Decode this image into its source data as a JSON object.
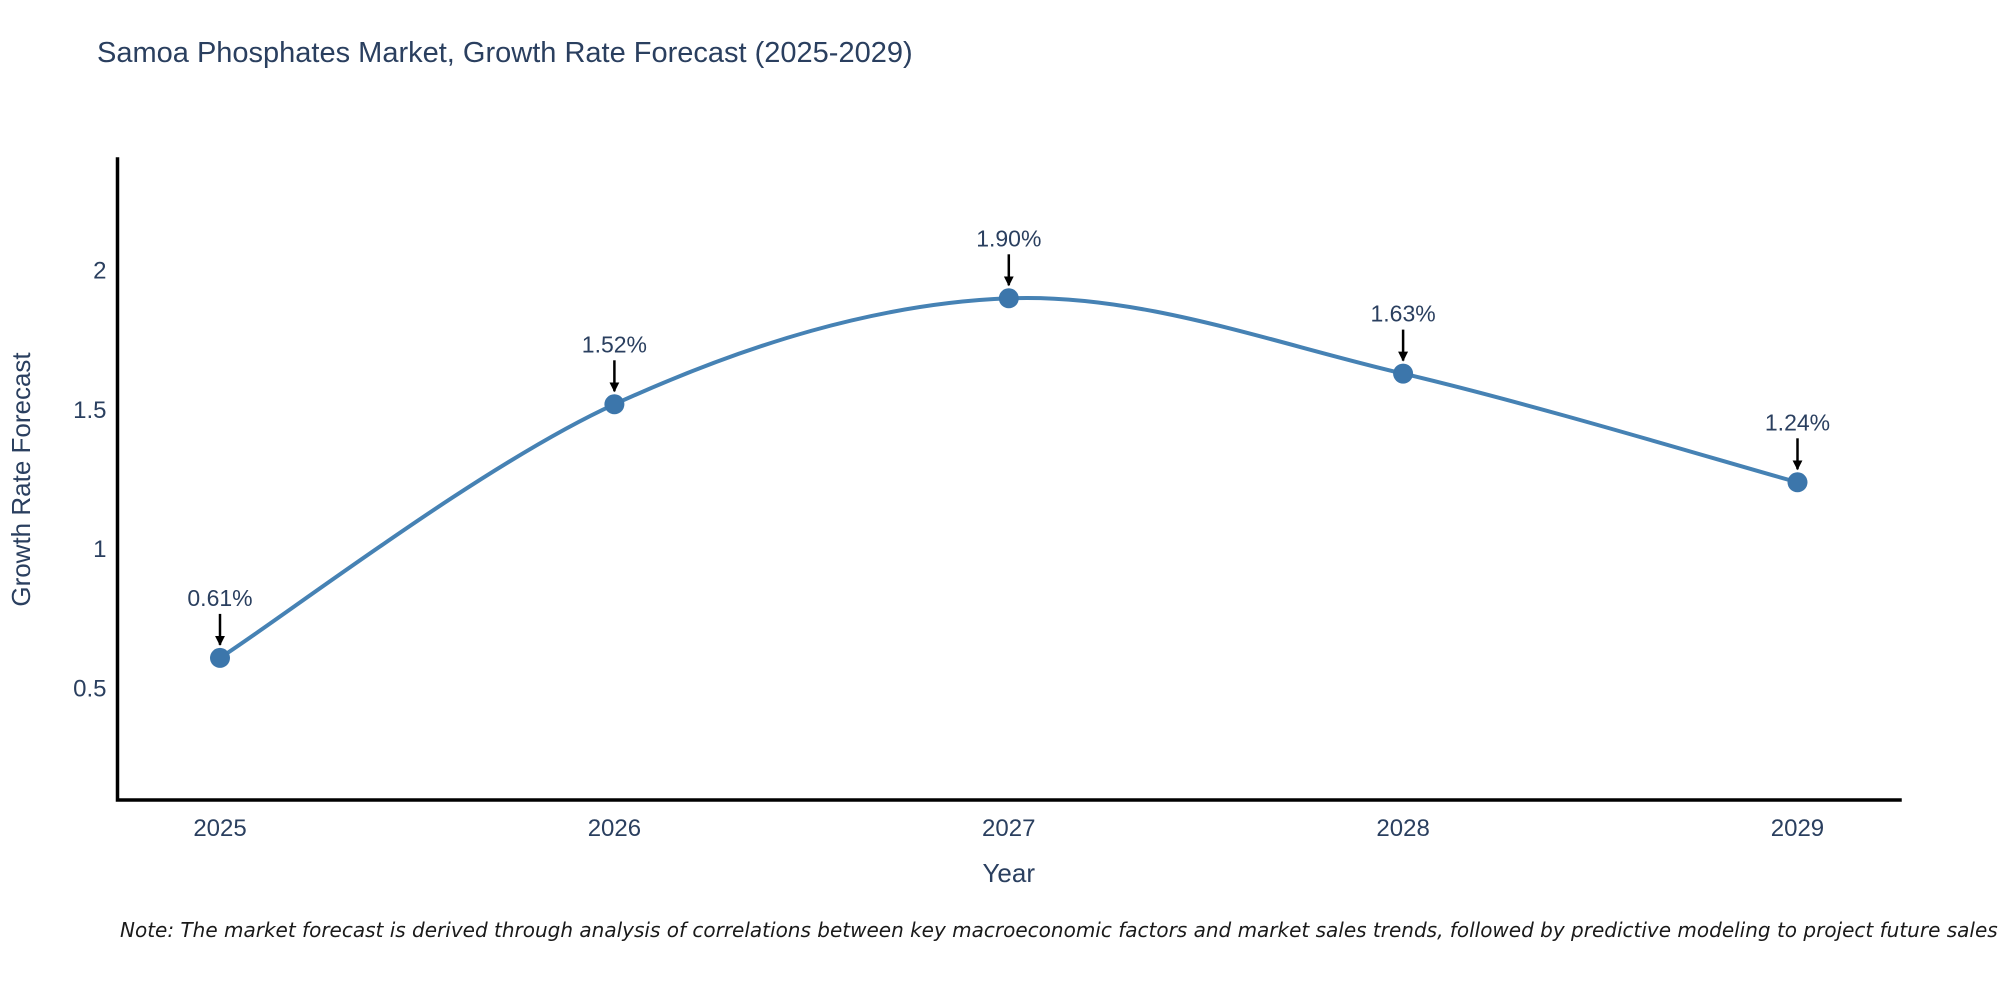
{
  "figure": {
    "title": "Samoa Phosphates Market, Growth Rate Forecast (2025-2029)",
    "note": "Note: The market forecast is derived through analysis of correlations between key macroeconomic factors and market sales trends, followed by predictive modeling to project future sales"
  },
  "chart_data": {
    "type": "line",
    "title": "Samoa Phosphates Market, Growth Rate Forecast (2025-2029)",
    "xlabel": "Year",
    "ylabel": "Growth Rate Forecast",
    "x": [
      2025,
      2026,
      2027,
      2028,
      2029
    ],
    "xtick_labels": [
      "2025",
      "2026",
      "2027",
      "2028",
      "2029"
    ],
    "series": [
      {
        "name": "Growth Rate Forecast",
        "values": [
          0.61,
          1.52,
          1.9,
          1.63,
          1.24
        ]
      }
    ],
    "point_labels": [
      "0.61%",
      "1.52%",
      "1.90%",
      "1.63%",
      "1.24%"
    ],
    "yticks": [
      0.5,
      1,
      1.5,
      2
    ],
    "ytick_labels": [
      "0.5",
      "1",
      "1.5",
      "2"
    ],
    "ylim": [
      0.1,
      2.4
    ],
    "xlim": [
      2024.74,
      2029.26
    ],
    "grid": false,
    "legend": false,
    "line_color": "#4682b4",
    "marker_color": "#3c76ab",
    "text_color": "#2a3f5f",
    "axis_color": "#000000",
    "annotation_arrow_color": "#000000"
  }
}
